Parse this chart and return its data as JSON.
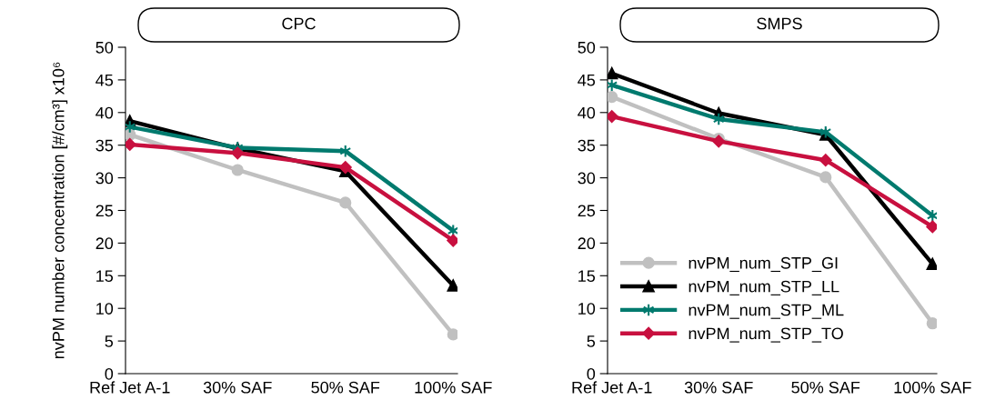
{
  "chart_data": [
    {
      "type": "line",
      "title": "CPC",
      "ylabel": "nvPM number concentration [#/cm³] x10⁶",
      "categories": [
        "Ref Jet A-1",
        "30% SAF",
        "50% SAF",
        "100% SAF"
      ],
      "ylim": [
        0,
        50
      ],
      "yticks": [
        0,
        5,
        10,
        15,
        20,
        25,
        30,
        35,
        40,
        45,
        50
      ],
      "grid": false,
      "legend": false,
      "series": [
        {
          "color": "#c0c0c0",
          "marker": "circle",
          "values": [
            36.6,
            31.2,
            26.2,
            6.0
          ]
        },
        {
          "color": "#000000",
          "marker": "triangle",
          "values": [
            38.7,
            34.5,
            31.0,
            13.5
          ]
        },
        {
          "color": "#007a6e",
          "marker": "cross",
          "values": [
            37.8,
            34.6,
            34.1,
            21.9
          ]
        },
        {
          "color": "#c8103f",
          "marker": "diamond",
          "values": [
            35.1,
            33.8,
            31.6,
            20.4
          ]
        }
      ]
    },
    {
      "type": "line",
      "title": "SMPS",
      "categories": [
        "Ref Jet A-1",
        "30% SAF",
        "50% SAF",
        "100% SAF"
      ],
      "ylim": [
        0,
        50
      ],
      "yticks": [
        0,
        5,
        10,
        15,
        20,
        25,
        30,
        35,
        40,
        45,
        50
      ],
      "grid": false,
      "legend": "bottom left",
      "series": [
        {
          "name": "nvPM_num_STP_GI",
          "color": "#c0c0c0",
          "marker": "circle",
          "values": [
            42.4,
            36.0,
            30.1,
            7.7
          ]
        },
        {
          "name": "nvPM_num_STP_LL",
          "color": "#000000",
          "marker": "triangle",
          "values": [
            46.0,
            39.9,
            36.6,
            16.8
          ]
        },
        {
          "name": "nvPM_num_STP_ML",
          "color": "#007a6e",
          "marker": "cross",
          "values": [
            44.2,
            39.0,
            37.0,
            24.2
          ]
        },
        {
          "name": "nvPM_num_STP_TO",
          "color": "#c8103f",
          "marker": "diamond",
          "values": [
            39.4,
            35.6,
            32.7,
            22.5
          ]
        }
      ]
    }
  ]
}
